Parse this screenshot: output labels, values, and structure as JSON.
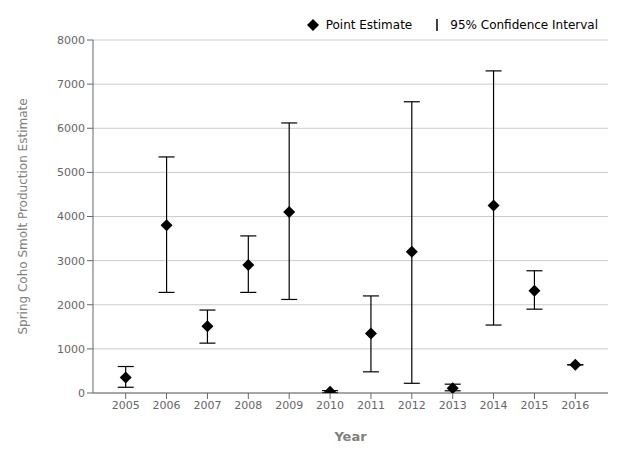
{
  "chart_data": {
    "type": "scatter",
    "xlabel": "Year",
    "ylabel": "Spring Coho Smolt Production Estimate",
    "x": [
      2005,
      2006,
      2007,
      2008,
      2009,
      2010,
      2011,
      2012,
      2013,
      2014,
      2015,
      2016
    ],
    "series": [
      {
        "name": "Point Estimate",
        "color": "black",
        "marker": "diamond",
        "values": [
          350,
          3800,
          1510,
          2900,
          4100,
          30,
          1350,
          3200,
          110,
          4250,
          2320,
          640
        ],
        "error_name": "95% Confidence Interval",
        "error_low": [
          130,
          2280,
          1130,
          2280,
          2120,
          10,
          480,
          220,
          50,
          1540,
          1900,
          640
        ],
        "error_high": [
          600,
          5350,
          1880,
          3560,
          6120,
          55,
          2200,
          6600,
          200,
          7300,
          2770,
          640
        ]
      }
    ],
    "xlim": [
      2004.2,
      2016.8
    ],
    "xticks": [
      2005,
      2006,
      2007,
      2008,
      2009,
      2010,
      2011,
      2012,
      2013,
      2014,
      2015,
      2016
    ],
    "ylim": [
      0,
      8000
    ],
    "yticks": [
      0,
      1000,
      2000,
      3000,
      4000,
      5000,
      6000,
      7000,
      8000
    ],
    "grid": true,
    "legend": "upper right"
  }
}
